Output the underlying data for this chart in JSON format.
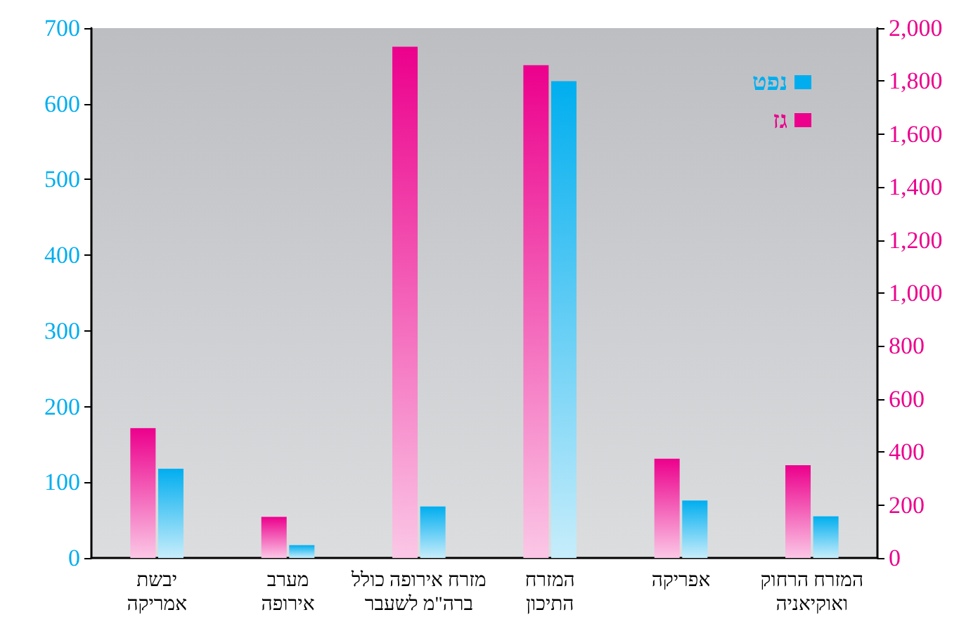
{
  "chart_data": {
    "type": "bar",
    "categories": [
      "יבשת\nאמריקה",
      "מערב\nאירופה",
      "מזרח אירופה כולל\nברה\"מ לשעבר",
      "המזרח\nהתיכון",
      "אפריקה",
      "המזרח הרחוק\nואוקיאניה"
    ],
    "series": [
      {
        "name": "גז",
        "color": "#ec008c",
        "axis": "y2",
        "values": [
          490,
          155,
          1930,
          1860,
          375,
          350
        ]
      },
      {
        "name": "נפט",
        "color": "#00aeef",
        "values": [
          118,
          17,
          68,
          630,
          76,
          55
        ]
      }
    ],
    "ylim": [
      0,
      700
    ],
    "yticks": [
      0,
      100,
      200,
      300,
      400,
      500,
      600,
      700
    ],
    "y2lim": [
      0,
      2000
    ],
    "y2ticks": [
      0,
      {
        "value": 200,
        "label": "200"
      },
      {
        "value": 400,
        "label": "400"
      },
      {
        "value": 600,
        "label": "600"
      },
      {
        "value": 800,
        "label": "800"
      },
      {
        "value": 1000,
        "label": "1,000"
      },
      {
        "value": 1200,
        "label": "1,200"
      },
      {
        "value": 1400,
        "label": "1,400"
      },
      {
        "value": 1600,
        "label": "1,600"
      },
      {
        "value": 1800,
        "label": "1,800"
      },
      {
        "value": 2000,
        "label": "2,000"
      }
    ],
    "legend": "top right",
    "grid": false
  }
}
